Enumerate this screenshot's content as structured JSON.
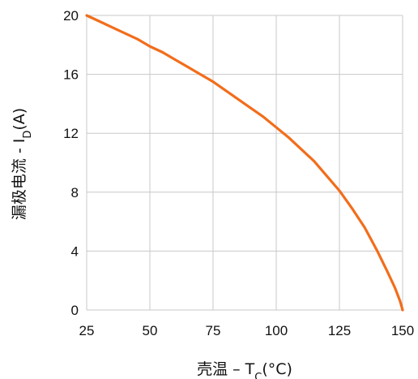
{
  "chart_data": {
    "type": "line",
    "title": "",
    "xlabel": {
      "main": "壳温 – T",
      "sub": "C",
      "suffix": "(°C)"
    },
    "ylabel": {
      "main": "漏极电流 - I",
      "sub": "D",
      "suffix": "(A)"
    },
    "xlim": [
      25,
      150
    ],
    "ylim": [
      0,
      20
    ],
    "xticks": [
      25,
      50,
      75,
      100,
      125,
      150
    ],
    "yticks": [
      0,
      4,
      8,
      12,
      16,
      20
    ],
    "grid": true,
    "legend": "none",
    "series": [
      {
        "color": "#f26d1b",
        "x": [
          25,
          30,
          35,
          40,
          45,
          50,
          55,
          60,
          65,
          70,
          75,
          80,
          85,
          90,
          95,
          100,
          105,
          110,
          115,
          120,
          125,
          130,
          135,
          140,
          144,
          147,
          149,
          150
        ],
        "y": [
          20.0,
          19.6,
          19.2,
          18.8,
          18.4,
          17.9,
          17.5,
          17.0,
          16.5,
          16.0,
          15.5,
          14.9,
          14.3,
          13.7,
          13.1,
          12.4,
          11.7,
          10.9,
          10.1,
          9.1,
          8.1,
          6.9,
          5.6,
          4.0,
          2.6,
          1.5,
          0.6,
          0.0
        ]
      }
    ]
  }
}
